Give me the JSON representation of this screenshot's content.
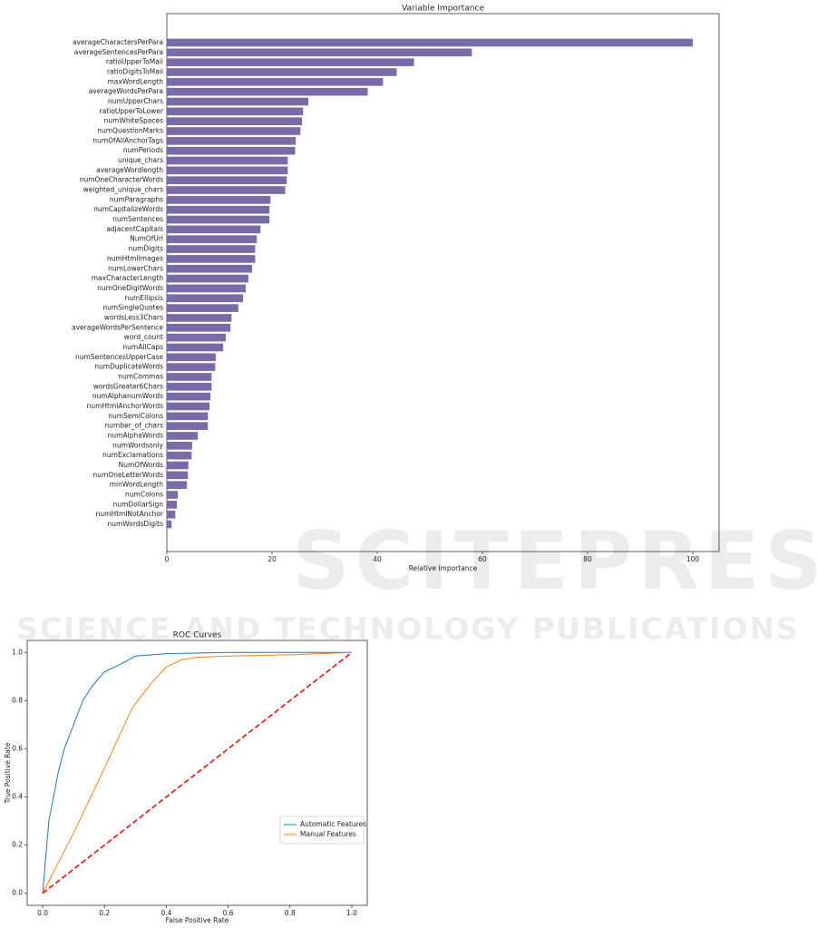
{
  "chart_data": [
    {
      "type": "barh",
      "title": "Variable Importance",
      "xlabel": "Relative Importance",
      "color": "#7a6ba8",
      "categories": [
        "averageCharactersPerPara",
        "averageSentencesPerPara",
        "ratioUpperToMail",
        "ratioDigitsToMail",
        "maxWordLength",
        "averageWordsPerPara",
        "numUpperChars",
        "ratioUpperToLower",
        "numWhiteSpaces",
        "numQuestionMarks",
        "numOfAllAnchorTags",
        "numPeriods",
        "unique_chars",
        "averageWordlength",
        "numOneCharacterWords",
        "weighted_unique_chars",
        "numParagraphs",
        "numCapitalizeWords",
        "numSentences",
        "adjacentCapitals",
        "NumOfUrl",
        "numDigits",
        "numHtmlImages",
        "numLowerChars",
        "maxCharacterLength",
        "numOneDigitWords",
        "numEllipsis",
        "numSingleQuotes",
        "wordsLess3Chars",
        "averageWordsPerSentence",
        "word_count",
        "numAllCaps",
        "numSentencesUpperCase",
        "numDuplicateWords",
        "numCommas",
        "wordsGreater6Chars",
        "numAlphanumWords",
        "numHtmlAnchorWords",
        "numSemiColons",
        "number_of_chars",
        "numAlphaWords",
        "numWordsonly",
        "numExclamations",
        "NumOfWords",
        "numOneLetterWords",
        "minWordLength",
        "numColons",
        "numDollarSign",
        "numHtmlNotAnchor",
        "numWordsDigits"
      ],
      "values": [
        100,
        58.0,
        47.0,
        43.7,
        41.1,
        38.2,
        26.9,
        25.9,
        25.7,
        25.4,
        24.5,
        24.4,
        23.0,
        23.0,
        22.8,
        22.5,
        19.7,
        19.5,
        19.5,
        17.8,
        17.1,
        16.8,
        16.8,
        16.2,
        15.5,
        15.0,
        14.5,
        13.6,
        12.3,
        12.1,
        11.2,
        10.7,
        9.3,
        9.2,
        8.5,
        8.5,
        8.3,
        8.1,
        7.8,
        7.8,
        5.9,
        4.8,
        4.7,
        4.1,
        4.0,
        3.8,
        2.1,
        1.9,
        1.6,
        0.9
      ],
      "xlim": [
        0,
        105
      ],
      "xticks": [
        0,
        20,
        40,
        60,
        80,
        100
      ]
    },
    {
      "type": "line",
      "title": "ROC Curves",
      "xlabel": "False Positive Rate",
      "ylabel": "True Positive Rate",
      "legend": "lower right",
      "series": [
        {
          "name": "Automatic Features",
          "color": "#1f77b4",
          "x": [
            0,
            0.02,
            0.05,
            0.07,
            0.1,
            0.13,
            0.16,
            0.2,
            0.25,
            0.3,
            0.4,
            0.6,
            0.8,
            1.0
          ],
          "values": [
            0,
            0.3,
            0.5,
            0.6,
            0.7,
            0.8,
            0.86,
            0.92,
            0.95,
            0.985,
            0.995,
            1.0,
            1.0,
            1.0
          ]
        },
        {
          "name": "Manual Features",
          "color": "#ff7f0e",
          "x": [
            0,
            0.1,
            0.2,
            0.29,
            0.35,
            0.4,
            0.45,
            0.5,
            0.6,
            0.8,
            1.0
          ],
          "values": [
            0,
            0.25,
            0.52,
            0.77,
            0.87,
            0.94,
            0.97,
            0.98,
            0.985,
            0.99,
            1.0
          ]
        },
        {
          "color": "#e8231c",
          "style": "dashed",
          "x": [
            0,
            1
          ],
          "values": [
            0,
            1
          ]
        }
      ],
      "xlim": [
        -0.05,
        1.05
      ],
      "ylim": [
        -0.05,
        1.05
      ],
      "xticks": [
        {
          "value": 0,
          "label": "0.0"
        },
        0.2,
        0.4,
        0.6,
        0.8,
        {
          "value": 1,
          "label": "1.0"
        }
      ],
      "yticks": [
        {
          "value": 0,
          "label": "0.0"
        },
        0.2,
        0.4,
        0.6,
        0.8,
        {
          "value": 1,
          "label": "1.0"
        }
      ]
    }
  ],
  "watermark": {
    "title": "SCITEPRESS",
    "subtitle": "SCIENCE AND TECHNOLOGY PUBLICATIONS"
  }
}
